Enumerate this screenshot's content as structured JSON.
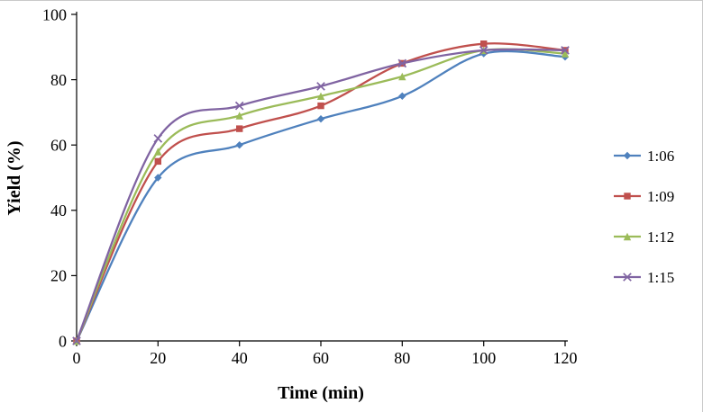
{
  "chart_data": {
    "type": "line",
    "title": "",
    "xlabel": "Time (min)",
    "ylabel": "Yield (%)",
    "x": [
      0,
      20,
      40,
      60,
      80,
      100,
      120
    ],
    "xticks": [
      "0",
      "20",
      "40",
      "60",
      "80",
      "100",
      "120"
    ],
    "yticks": [
      "0",
      "20",
      "40",
      "60",
      "80",
      "100"
    ],
    "xlim": [
      0,
      120
    ],
    "ylim": [
      0,
      100
    ],
    "grid": false,
    "legend_position": "right",
    "smooth_lines": true,
    "series": [
      {
        "name": "1:06",
        "color": "#4F81BD",
        "marker": "diamond",
        "values": [
          0,
          50,
          60,
          68,
          75,
          88,
          87
        ]
      },
      {
        "name": "1:09",
        "color": "#C0504D",
        "marker": "square",
        "values": [
          0,
          55,
          65,
          72,
          85,
          91,
          89
        ]
      },
      {
        "name": "1:12",
        "color": "#9BBB59",
        "marker": "triangle",
        "values": [
          0,
          58,
          69,
          75,
          81,
          89,
          88
        ]
      },
      {
        "name": "1:15",
        "color": "#8064A2",
        "marker": "x",
        "values": [
          0,
          62,
          72,
          78,
          85,
          89,
          89
        ]
      }
    ]
  }
}
